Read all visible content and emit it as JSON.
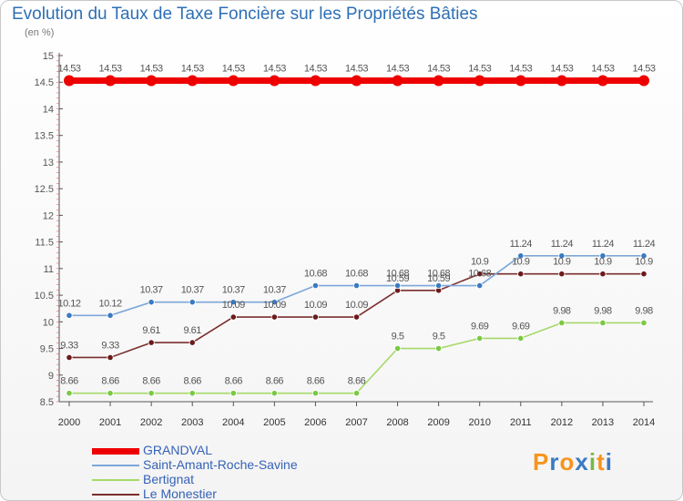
{
  "title": "Evolution du Taux de Taxe Foncière sur les Propriétés Bâties",
  "unit_label": "(en %)",
  "brand": {
    "letters": [
      "P",
      "r",
      "o",
      "x",
      "i",
      "t",
      "i"
    ],
    "colors": [
      "#f7941d",
      "#3a7ac2",
      "#f7941d",
      "#3a7ac2",
      "#7ab648",
      "#f7941d",
      "#3a7ac2"
    ]
  },
  "chart_data": {
    "type": "line",
    "x": [
      "2000",
      "2001",
      "2002",
      "2003",
      "2004",
      "2005",
      "2006",
      "2007",
      "2008",
      "2009",
      "2010",
      "2011",
      "2012",
      "2013",
      "2014"
    ],
    "ylim": [
      8.5,
      15
    ],
    "yticks": [
      "8.5",
      "9",
      "9.5",
      "10",
      "10.5",
      "11",
      "11.5",
      "12",
      "12.5",
      "13",
      "13.5",
      "14",
      "14.5",
      "15"
    ],
    "legend_position": "bottom-left",
    "series": [
      {
        "name": "GRANDVAL",
        "color": "#ee0000",
        "marker_color": "#ee0000",
        "values": [
          14.53,
          14.53,
          14.53,
          14.53,
          14.53,
          14.53,
          14.53,
          14.53,
          14.53,
          14.53,
          14.53,
          14.53,
          14.53,
          14.53,
          14.53
        ],
        "labels": [
          "14.53",
          "14.53",
          "14.53",
          "14.53",
          "14.53",
          "14.53",
          "14.53",
          "14.53",
          "14.53",
          "14.53",
          "14.53",
          "14.53",
          "14.53",
          "14.53",
          "14.53"
        ]
      },
      {
        "name": "Saint-Amant-Roche-Savine",
        "color": "#7da7d9",
        "marker_color": "#3a7ac2",
        "values": [
          10.12,
          10.12,
          10.37,
          10.37,
          10.37,
          10.37,
          10.68,
          10.68,
          10.68,
          10.68,
          10.68,
          11.24,
          11.24,
          11.24,
          11.24
        ],
        "labels": [
          "10.12",
          "10.12",
          "10.37",
          "10.37",
          "10.37",
          "10.37",
          "10.68",
          "10.68",
          "10.68",
          "10.68",
          "10.68",
          "11.24",
          "11.24",
          "11.24",
          "11.24"
        ]
      },
      {
        "name": "Bertignat",
        "color": "#a6d96a",
        "marker_color": "#7ac943",
        "values": [
          8.66,
          8.66,
          8.66,
          8.66,
          8.66,
          8.66,
          8.66,
          8.66,
          9.5,
          9.5,
          9.69,
          9.69,
          9.98,
          9.98,
          9.98
        ],
        "labels": [
          "8.66",
          "8.66",
          "8.66",
          "8.66",
          "8.66",
          "8.66",
          "8.66",
          "8.66",
          "9.5",
          "9.5",
          "9.69",
          "9.69",
          "9.98",
          "9.98",
          "9.98"
        ]
      },
      {
        "name": "Le Monestier",
        "color": "#7b2d2d",
        "marker_color": "#6b1a1a",
        "values": [
          9.33,
          9.33,
          9.61,
          9.61,
          10.09,
          10.09,
          10.09,
          10.09,
          10.59,
          10.59,
          10.9,
          10.9,
          10.9,
          10.9,
          10.9
        ],
        "labels": [
          "9.33",
          "9.33",
          "9.61",
          "9.61",
          "10.09",
          "10.09",
          "10.09",
          "10.09",
          "10.59",
          "10.59",
          "10.9",
          "10.9",
          "10.9",
          "10.9",
          "10.9"
        ]
      }
    ]
  }
}
